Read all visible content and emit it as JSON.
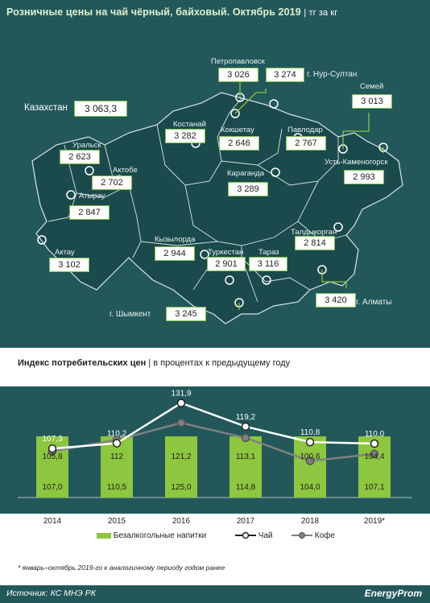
{
  "header": {
    "title": "Розничные цены на чай чёрный, байховый. Октябрь 2019",
    "unit": "| тг за кг"
  },
  "map": {
    "country": {
      "name": "Казахстан",
      "value": "3 063,3"
    },
    "regions": [
      {
        "name": "Петропавловск",
        "value": "3 026"
      },
      {
        "name": "г. Нур-Султан",
        "value": "3 274"
      },
      {
        "name": "Семей",
        "value": "3 013"
      },
      {
        "name": "Костанай",
        "value": "3 282"
      },
      {
        "name": "Кокшетау",
        "value": "2 646"
      },
      {
        "name": "Павлодар",
        "value": "2 767"
      },
      {
        "name": "Уральск",
        "value": "2 623"
      },
      {
        "name": "Актобе",
        "value": "2 702"
      },
      {
        "name": "Усть-Каменогорск",
        "value": "2 993"
      },
      {
        "name": "Караганда",
        "value": "3 289"
      },
      {
        "name": "Атырау",
        "value": "2 847"
      },
      {
        "name": "Талдыкорган",
        "value": "2 814"
      },
      {
        "name": "Кызылорда",
        "value": "2 944"
      },
      {
        "name": "Туркестан",
        "value": "2 901"
      },
      {
        "name": "Тараз",
        "value": "3 116"
      },
      {
        "name": "Актау",
        "value": "3 102"
      },
      {
        "name": "г. Алматы",
        "value": "3 420"
      },
      {
        "name": "г. Шымкент",
        "value": "3 245"
      }
    ]
  },
  "cpi": {
    "title_bold": "Индекс  потребительских  цен",
    "title_rest": " | в процентах к предыдущему году"
  },
  "chart_data": {
    "type": "bar",
    "title": "Индекс потребительских цен",
    "categories": [
      "2014",
      "2015",
      "2016",
      "2017",
      "2018",
      "2019*"
    ],
    "series": [
      {
        "name": "Безалкогольные напитки",
        "type": "bar",
        "values": [
          107.0,
          110.5,
          125.0,
          114.8,
          104.0,
          107.1
        ],
        "labels": [
          "107,0",
          "110,5",
          "125,0",
          "114,8",
          "104,0",
          "107,1"
        ],
        "color": "#8dc63f"
      },
      {
        "name": "Чай",
        "type": "line",
        "values": [
          107.3,
          110.2,
          131.9,
          119.2,
          110.8,
          110.0
        ],
        "labels": [
          "107,3",
          "110,2",
          "131,9",
          "119,2",
          "110,8",
          "110,0"
        ],
        "color": "#ffffff"
      },
      {
        "name": "Кофе",
        "type": "line",
        "values": [
          105.8,
          112,
          121.2,
          113.1,
          100.6,
          104.4
        ],
        "labels": [
          "105,8",
          "112",
          "121,2",
          "113,1",
          "100,6",
          "104,4"
        ],
        "color": "#808080"
      }
    ]
  },
  "legend": {
    "bar": "Безалкогольные напитки",
    "tea": "Чай",
    "coffee": "Кофе"
  },
  "footnote": "* январь–октябрь 2019-го к аналогичному периоду годом ранее",
  "footer": {
    "source": "Источник: КС МНЭ РК",
    "logo": "EnergyProm"
  }
}
